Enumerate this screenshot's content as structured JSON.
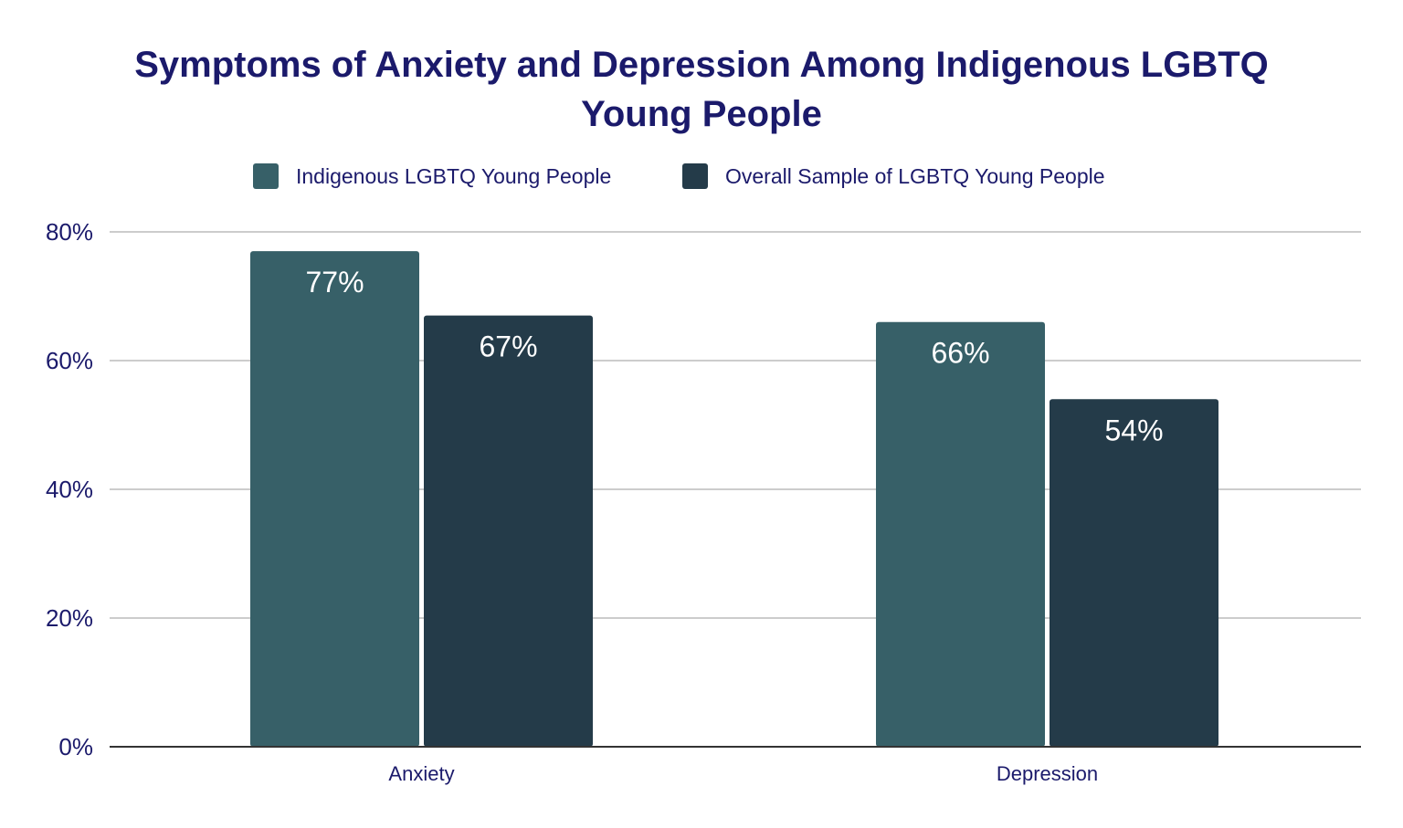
{
  "chart_data": {
    "type": "bar",
    "title_lines": [
      "Symptoms of Anxiety and Depression Among Indigenous LGBTQ",
      "Young People"
    ],
    "categories": [
      "Anxiety",
      "Depression"
    ],
    "series": [
      {
        "name": "Indigenous LGBTQ Young People",
        "values": [
          77,
          66
        ],
        "labels": [
          "77%",
          "66%"
        ],
        "color": "#376068"
      },
      {
        "name": "Overall Sample of LGBTQ Young People",
        "values": [
          67,
          54
        ],
        "labels": [
          "67%",
          "54%"
        ],
        "color": "#243b49"
      }
    ],
    "ylim": [
      0,
      80
    ],
    "yticks": [
      0,
      20,
      40,
      60,
      80
    ],
    "ytick_labels": [
      "0%",
      "20%",
      "40%",
      "60%",
      "80%"
    ],
    "xlabel": "",
    "ylabel": "",
    "grid": true,
    "legend_position": "top",
    "text_color": "#1b1a6b"
  }
}
